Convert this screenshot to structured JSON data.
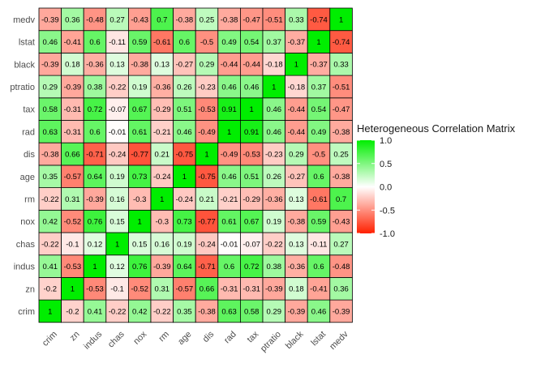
{
  "chart_data": {
    "type": "heatmap",
    "title": "",
    "xlabel": "",
    "ylabel": "",
    "x_categories": [
      "crim",
      "zn",
      "indus",
      "chas",
      "nox",
      "rm",
      "age",
      "dis",
      "rad",
      "tax",
      "ptratio",
      "black",
      "lstat",
      "medv"
    ],
    "y_categories": [
      "crim",
      "zn",
      "indus",
      "chas",
      "nox",
      "rm",
      "age",
      "dis",
      "rad",
      "tax",
      "ptratio",
      "black",
      "lstat",
      "medv"
    ],
    "values": [
      [
        1,
        -0.2,
        0.41,
        -0.22,
        0.42,
        -0.22,
        0.35,
        -0.38,
        0.63,
        0.58,
        0.29,
        -0.39,
        0.46,
        -0.39
      ],
      [
        -0.2,
        1,
        -0.53,
        -0.1,
        -0.52,
        0.31,
        -0.57,
        0.66,
        -0.31,
        -0.31,
        -0.39,
        0.18,
        -0.41,
        0.36
      ],
      [
        0.41,
        -0.53,
        1,
        0.12,
        0.76,
        -0.39,
        0.64,
        -0.71,
        0.6,
        0.72,
        0.38,
        -0.36,
        0.6,
        -0.48
      ],
      [
        -0.22,
        -0.1,
        0.12,
        1,
        0.15,
        0.16,
        0.19,
        -0.24,
        -0.01,
        -0.07,
        -0.22,
        0.13,
        -0.11,
        0.27
      ],
      [
        0.42,
        -0.52,
        0.76,
        0.15,
        1,
        -0.3,
        0.73,
        -0.77,
        0.61,
        0.67,
        0.19,
        -0.38,
        0.59,
        -0.43
      ],
      [
        -0.22,
        0.31,
        -0.39,
        0.16,
        -0.3,
        1,
        -0.24,
        0.21,
        -0.21,
        -0.29,
        -0.36,
        0.13,
        -0.61,
        0.7
      ],
      [
        0.35,
        -0.57,
        0.64,
        0.19,
        0.73,
        -0.24,
        1,
        -0.75,
        0.46,
        0.51,
        0.26,
        -0.27,
        0.6,
        -0.38
      ],
      [
        -0.38,
        0.66,
        -0.71,
        -0.24,
        -0.77,
        0.21,
        -0.75,
        1,
        -0.49,
        -0.53,
        -0.23,
        0.29,
        -0.5,
        0.25
      ],
      [
        0.63,
        -0.31,
        0.6,
        -0.01,
        0.61,
        -0.21,
        0.46,
        -0.49,
        1,
        0.91,
        0.46,
        -0.44,
        0.49,
        -0.38
      ],
      [
        0.58,
        -0.31,
        0.72,
        -0.07,
        0.67,
        -0.29,
        0.51,
        -0.53,
        0.91,
        1,
        0.46,
        -0.44,
        0.54,
        -0.47
      ],
      [
        0.29,
        -0.39,
        0.38,
        -0.22,
        0.19,
        -0.36,
        0.26,
        -0.23,
        0.46,
        0.46,
        1,
        -0.18,
        0.37,
        -0.51
      ],
      [
        -0.39,
        0.18,
        -0.36,
        0.13,
        -0.38,
        0.13,
        -0.27,
        0.29,
        -0.44,
        -0.44,
        -0.18,
        1,
        -0.37,
        0.33
      ],
      [
        0.46,
        -0.41,
        0.6,
        -0.11,
        0.59,
        -0.61,
        0.6,
        -0.5,
        0.49,
        0.54,
        0.37,
        -0.37,
        1,
        -0.74
      ],
      [
        -0.39,
        0.36,
        -0.48,
        0.27,
        -0.43,
        0.7,
        -0.38,
        0.25,
        -0.38,
        -0.47,
        -0.51,
        0.33,
        -0.74,
        1
      ]
    ],
    "value_labels": [
      [
        "1",
        "-0.2",
        "0.41",
        "-0.22",
        "0.42",
        "-0.22",
        "0.35",
        "-0.38",
        "0.63",
        "0.58",
        "0.29",
        "-0.39",
        "0.46",
        "-0.39"
      ],
      [
        "-0.2",
        "1",
        "-0.53",
        "-0.1",
        "-0.52",
        "0.31",
        "-0.57",
        "0.66",
        "-0.31",
        "-0.31",
        "-0.39",
        "0.18",
        "-0.41",
        "0.36"
      ],
      [
        "0.41",
        "-0.53",
        "1",
        "0.12",
        "0.76",
        "-0.39",
        "0.64",
        "-0.71",
        "0.6",
        "0.72",
        "0.38",
        "-0.36",
        "0.6",
        "-0.48"
      ],
      [
        "-0.22",
        "-0.1",
        "0.12",
        "1",
        "0.15",
        "0.16",
        "0.19",
        "-0.24",
        "-0.01",
        "-0.07",
        "-0.22",
        "0.13",
        "-0.11",
        "0.27"
      ],
      [
        "0.42",
        "-0.52",
        "0.76",
        "0.15",
        "1",
        "-0.3",
        "0.73",
        "-0.77",
        "0.61",
        "0.67",
        "0.19",
        "-0.38",
        "0.59",
        "-0.43"
      ],
      [
        "-0.22",
        "0.31",
        "-0.39",
        "0.16",
        "-0.3",
        "1",
        "-0.24",
        "0.21",
        "-0.21",
        "-0.29",
        "-0.36",
        "0.13",
        "-0.61",
        "0.7"
      ],
      [
        "0.35",
        "-0.57",
        "0.64",
        "0.19",
        "0.73",
        "-0.24",
        "1",
        "-0.75",
        "0.46",
        "0.51",
        "0.26",
        "-0.27",
        "0.6",
        "-0.38"
      ],
      [
        "-0.38",
        "0.66",
        "-0.71",
        "-0.24",
        "-0.77",
        "0.21",
        "-0.75",
        "1",
        "-0.49",
        "-0.53",
        "-0.23",
        "0.29",
        "-0.5",
        "0.25"
      ],
      [
        "0.63",
        "-0.31",
        "0.6",
        "-0.01",
        "0.61",
        "-0.21",
        "0.46",
        "-0.49",
        "1",
        "0.91",
        "0.46",
        "-0.44",
        "0.49",
        "-0.38"
      ],
      [
        "0.58",
        "-0.31",
        "0.72",
        "-0.07",
        "0.67",
        "-0.29",
        "0.51",
        "-0.53",
        "0.91",
        "1",
        "0.46",
        "-0.44",
        "0.54",
        "-0.47"
      ],
      [
        "0.29",
        "-0.39",
        "0.38",
        "-0.22",
        "0.19",
        "-0.36",
        "0.26",
        "-0.23",
        "0.46",
        "0.46",
        "1",
        "-0.18",
        "0.37",
        "-0.51"
      ],
      [
        "-0.39",
        "0.18",
        "-0.36",
        "0.13",
        "-0.38",
        "0.13",
        "-0.27",
        "0.29",
        "-0.44",
        "-0.44",
        "-0.18",
        "1",
        "-0.37",
        "0.33"
      ],
      [
        "0.46",
        "-0.41",
        "0.6",
        "-0.11",
        "0.59",
        "-0.61",
        "0.6",
        "-0.5",
        "0.49",
        "0.54",
        "0.37",
        "-0.37",
        "1",
        "-0.74"
      ],
      [
        "-0.39",
        "0.36",
        "-0.48",
        "0.27",
        "-0.43",
        "0.7",
        "-0.38",
        "0.25",
        "-0.38",
        "-0.47",
        "-0.51",
        "0.33",
        "-0.74",
        "1"
      ]
    ],
    "color_scale": {
      "min": -1,
      "mid": 0,
      "max": 1,
      "low_color": "#ff2000",
      "mid_color": "#ffffff",
      "high_color": "#00ee00"
    },
    "legend": {
      "title": "Heterogeneous Correlation Matrix",
      "ticks": [
        "1.0",
        "0.5",
        "0.0",
        "-0.5",
        "-1.0"
      ],
      "tick_values": [
        1,
        0.5,
        0,
        -0.5,
        -1
      ],
      "position": "right"
    },
    "grid": false,
    "cell_border_color": "#000000",
    "tick_label_color": "#4d4d4d"
  }
}
